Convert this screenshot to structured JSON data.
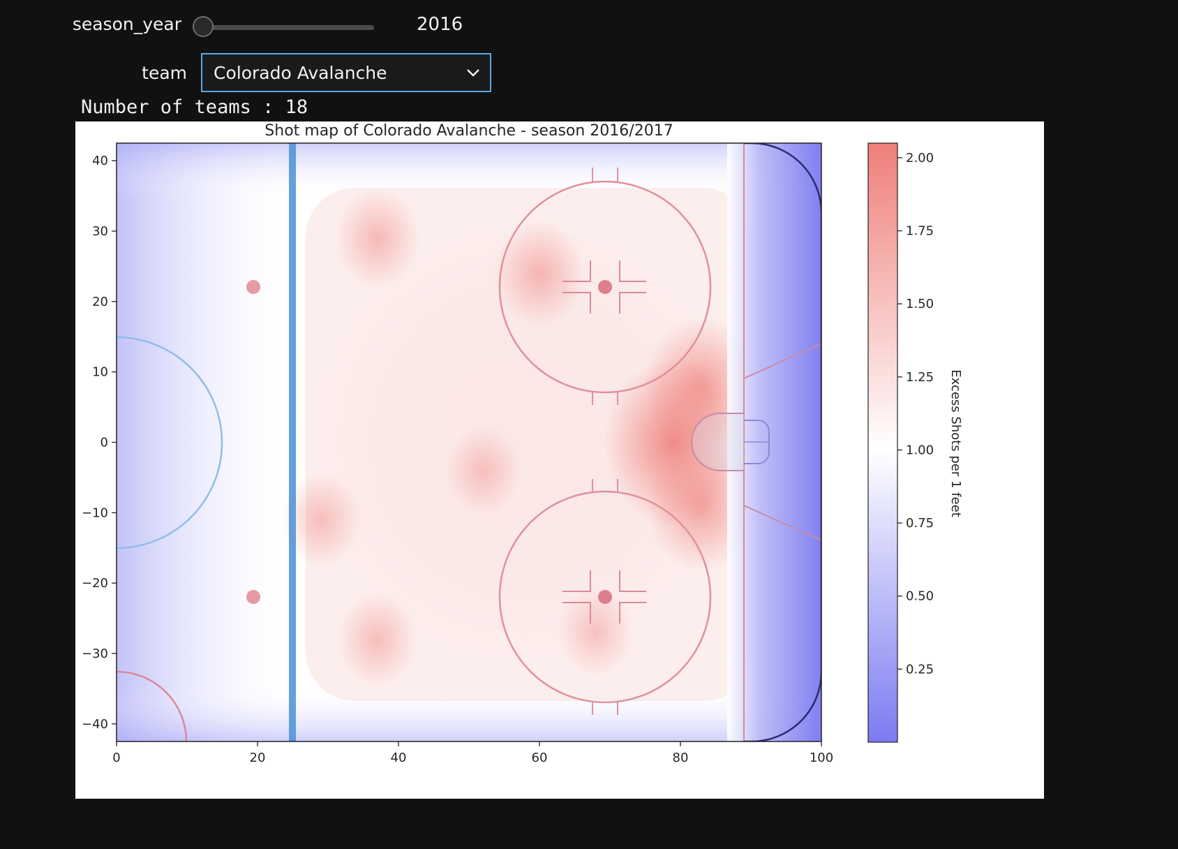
{
  "controls": {
    "season_slider": {
      "label": "season_year",
      "value": "2016"
    },
    "team_select": {
      "label": "team",
      "selected": "Colorado Avalanche"
    }
  },
  "output": {
    "text": "Number of teams : 18"
  },
  "colors": {
    "page_bg": "#111111",
    "accent": "#5aa9e6",
    "cmap_low": "#7b7bf2",
    "cmap_mid": "#ffffff",
    "cmap_high": "#ef7f7a"
  },
  "chart_data": {
    "type": "heatmap",
    "title": "Shot map of Colorado Avalanche - season 2016/2017",
    "xlabel": "",
    "ylabel": "",
    "xlim": [
      0,
      100
    ],
    "ylim": [
      -42.5,
      42.5
    ],
    "x_ticks": [
      "0",
      "20",
      "40",
      "60",
      "80",
      "100"
    ],
    "y_ticks": [
      "40",
      "30",
      "20",
      "10",
      "0",
      "−10",
      "−20",
      "−30",
      "−40"
    ],
    "colorbar": {
      "label": "Excess Shots per 1 feet",
      "range": [
        0,
        2.05
      ],
      "ticks": [
        "2.00",
        "1.75",
        "1.50",
        "1.25",
        "1.00",
        "0.75",
        "0.50",
        "0.25"
      ]
    },
    "grid": false,
    "hotspots": [
      {
        "x": 79,
        "y": 0,
        "value": 1.85
      },
      {
        "x": 83,
        "y": 8,
        "value": 1.6
      },
      {
        "x": 83,
        "y": -9,
        "value": 1.55
      },
      {
        "x": 60,
        "y": 24,
        "value": 1.35
      },
      {
        "x": 37,
        "y": 29,
        "value": 1.3
      },
      {
        "x": 37,
        "y": -28,
        "value": 1.25
      },
      {
        "x": 29,
        "y": -11,
        "value": 1.25
      },
      {
        "x": 52,
        "y": -4,
        "value": 1.2
      },
      {
        "x": 68,
        "y": -27,
        "value": 1.2
      }
    ]
  }
}
